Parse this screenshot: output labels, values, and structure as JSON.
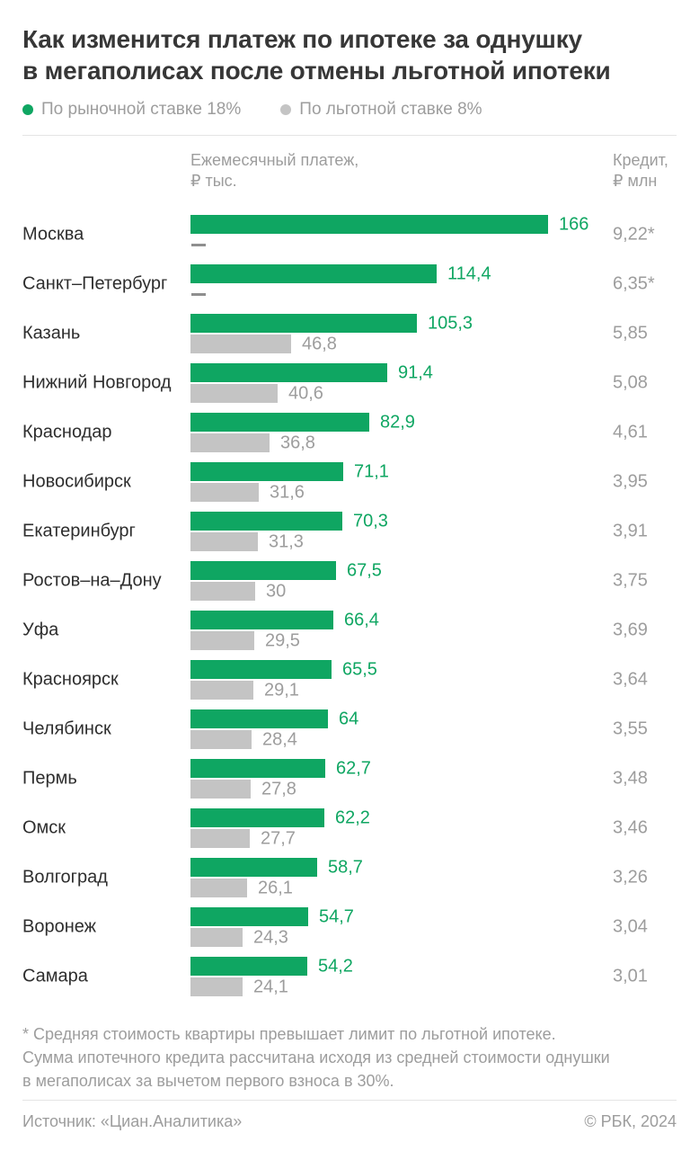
{
  "title": "Как изменится платеж по ипотеке за однушку\nв мегаполисах после отмены льготной ипотеки",
  "legend": [
    {
      "label": "По рыночной ставке 18%",
      "color": "#0FA662"
    },
    {
      "label": "По льготной ставке 8%",
      "color": "#C4C4C4"
    }
  ],
  "columns": {
    "payment_header": "Ежемесячный платеж,\n₽ тыс.",
    "credit_header": "Кредит,\n₽ млн"
  },
  "rows": [
    {
      "city": "Москва",
      "market": 166,
      "market_label": "166",
      "pref": null,
      "pref_label": null,
      "credit_label": "9,22*"
    },
    {
      "city": "Санкт–Петербург",
      "market": 114.4,
      "market_label": "114,4",
      "pref": null,
      "pref_label": null,
      "credit_label": "6,35*"
    },
    {
      "city": "Казань",
      "market": 105.3,
      "market_label": "105,3",
      "pref": 46.8,
      "pref_label": "46,8",
      "credit_label": "5,85"
    },
    {
      "city": "Нижний Новгород",
      "market": 91.4,
      "market_label": "91,4",
      "pref": 40.6,
      "pref_label": "40,6",
      "credit_label": "5,08"
    },
    {
      "city": "Краснодар",
      "market": 82.9,
      "market_label": "82,9",
      "pref": 36.8,
      "pref_label": "36,8",
      "credit_label": "4,61"
    },
    {
      "city": "Новосибирск",
      "market": 71.1,
      "market_label": "71,1",
      "pref": 31.6,
      "pref_label": "31,6",
      "credit_label": "3,95"
    },
    {
      "city": "Екатеринбург",
      "market": 70.3,
      "market_label": "70,3",
      "pref": 31.3,
      "pref_label": "31,3",
      "credit_label": "3,91"
    },
    {
      "city": "Ростов–на–Дону",
      "market": 67.5,
      "market_label": "67,5",
      "pref": 30,
      "pref_label": "30",
      "credit_label": "3,75"
    },
    {
      "city": "Уфа",
      "market": 66.4,
      "market_label": "66,4",
      "pref": 29.5,
      "pref_label": "29,5",
      "credit_label": "3,69"
    },
    {
      "city": "Красноярск",
      "market": 65.5,
      "market_label": "65,5",
      "pref": 29.1,
      "pref_label": "29,1",
      "credit_label": "3,64"
    },
    {
      "city": "Челябинск",
      "market": 64,
      "market_label": "64",
      "pref": 28.4,
      "pref_label": "28,4",
      "credit_label": "3,55"
    },
    {
      "city": "Пермь",
      "market": 62.7,
      "market_label": "62,7",
      "pref": 27.8,
      "pref_label": "27,8",
      "credit_label": "3,48"
    },
    {
      "city": "Омск",
      "market": 62.2,
      "market_label": "62,2",
      "pref": 27.7,
      "pref_label": "27,7",
      "credit_label": "3,46"
    },
    {
      "city": "Волгоград",
      "market": 58.7,
      "market_label": "58,7",
      "pref": 26.1,
      "pref_label": "26,1",
      "credit_label": "3,26"
    },
    {
      "city": "Воронеж",
      "market": 54.7,
      "market_label": "54,7",
      "pref": 24.3,
      "pref_label": "24,3",
      "credit_label": "3,04"
    },
    {
      "city": "Самара",
      "market": 54.2,
      "market_label": "54,2",
      "pref": 24.1,
      "pref_label": "24,1",
      "credit_label": "3,01"
    }
  ],
  "footnote": "* Средняя стоимость квартиры превышает лимит по льготной ипотеке.\nСумма ипотечного кредита рассчитана исходя из средней стоимости однушки\nв мегаполисах за вычетом первого взноса в 30%.",
  "source": "Источник: «Циан.Аналитика»",
  "copyright": "© РБК, 2024",
  "colors": {
    "market_green": "#0FA662",
    "preferential_gray": "#C4C4C4",
    "text_dark": "#2E2E2E",
    "text_gray": "#9D9D9D",
    "dash_gray": "#8F8F8F",
    "divider": "#E4E4E4"
  },
  "chart_data": {
    "type": "bar",
    "orientation": "horizontal",
    "title": "Как изменится платеж по ипотеке за однушку в мегаполисах после отмены льготной ипотеки",
    "xlabel": "Ежемесячный платеж, ₽ тыс.",
    "xlim": [
      0,
      166
    ],
    "grid": false,
    "legend_position": "top",
    "categories": [
      "Москва",
      "Санкт–Петербург",
      "Казань",
      "Нижний Новгород",
      "Краснодар",
      "Новосибирск",
      "Екатеринбург",
      "Ростов–на–Дону",
      "Уфа",
      "Красноярск",
      "Челябинск",
      "Пермь",
      "Омск",
      "Волгоград",
      "Воронеж",
      "Самара"
    ],
    "series": [
      {
        "name": "По рыночной ставке 18%",
        "color": "#0FA662",
        "values": [
          166,
          114.4,
          105.3,
          91.4,
          82.9,
          71.1,
          70.3,
          67.5,
          66.4,
          65.5,
          64,
          62.7,
          62.2,
          58.7,
          54.7,
          54.2
        ]
      },
      {
        "name": "По льготной ставке 8%",
        "color": "#C4C4C4",
        "values": [
          null,
          null,
          46.8,
          40.6,
          36.8,
          31.6,
          31.3,
          30,
          29.5,
          29.1,
          28.4,
          27.8,
          27.7,
          26.1,
          24.3,
          24.1
        ]
      }
    ],
    "extra_column": {
      "header": "Кредит, ₽ млн",
      "values": [
        "9,22*",
        "6,35*",
        "5,85",
        "5,08",
        "4,61",
        "3,95",
        "3,91",
        "3,75",
        "3,69",
        "3,64",
        "3,55",
        "3,48",
        "3,46",
        "3,26",
        "3,04",
        "3,01"
      ]
    },
    "annotation": "* Средняя стоимость квартиры превышает лимит по льготной ипотеке. Сумма ипотечного кредита рассчитана исходя из средней стоимости однушки в мегаполисах за вычетом первого взноса в 30%."
  }
}
